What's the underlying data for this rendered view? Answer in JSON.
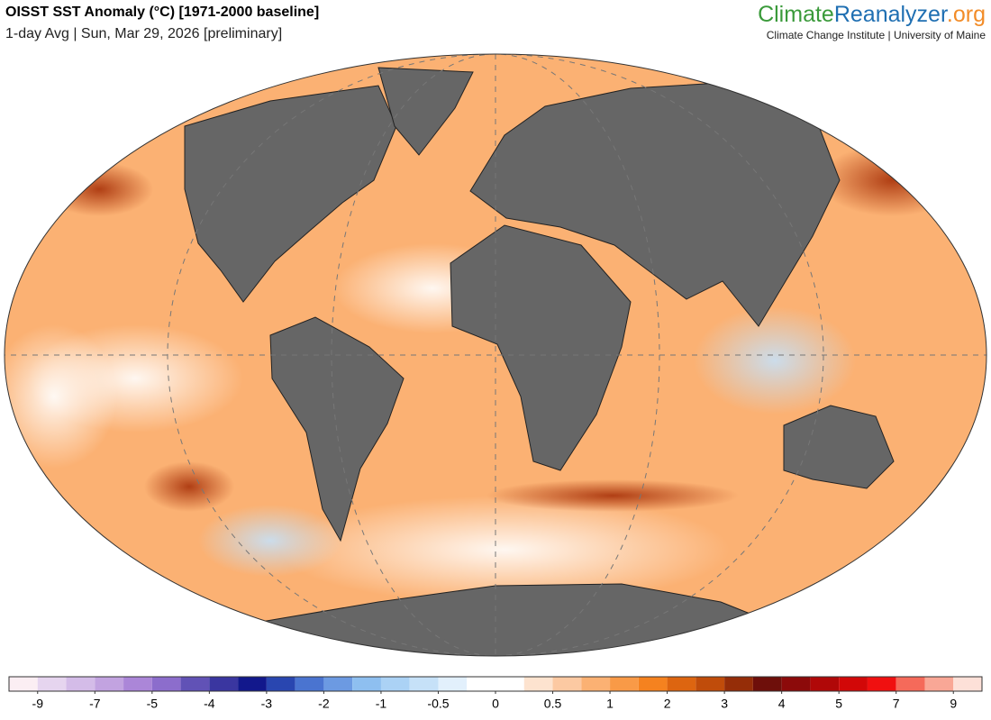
{
  "header": {
    "title": "OISST SST Anomaly (°C) [1971-2000 baseline]",
    "subtitle": "1-day Avg | Sun, Mar 29, 2026 [preliminary]",
    "brand": {
      "parts": [
        "Climate",
        "Reanalyzer",
        ".org"
      ],
      "tagline": "Climate Change Institute | University of Maine"
    }
  },
  "colorbar": {
    "colors": [
      "#fbeef3",
      "#e6d5ef",
      "#d4bce8",
      "#c2a3e0",
      "#ab86d8",
      "#8c6dcc",
      "#6152b6",
      "#3a36a0",
      "#12188c",
      "#2946b0",
      "#4a74d0",
      "#6c9ae2",
      "#8ebff0",
      "#abd2f5",
      "#c6e1f8",
      "#e2f0fc",
      "#ffffff",
      "#ffffff",
      "#fde3cf",
      "#fcc9a2",
      "#fbb173",
      "#f99a47",
      "#f5821f",
      "#dd6510",
      "#c04c0a",
      "#952d08",
      "#6e0f0a",
      "#8c0a0a",
      "#b00808",
      "#d20808",
      "#f01010",
      "#f56a5a",
      "#f9a796",
      "#fde0d8"
    ],
    "ticks": [
      -9,
      -7,
      -5,
      -4,
      -3,
      -2,
      -1,
      -0.5,
      0,
      0.5,
      1,
      2,
      3,
      4,
      5,
      7,
      9
    ]
  }
}
